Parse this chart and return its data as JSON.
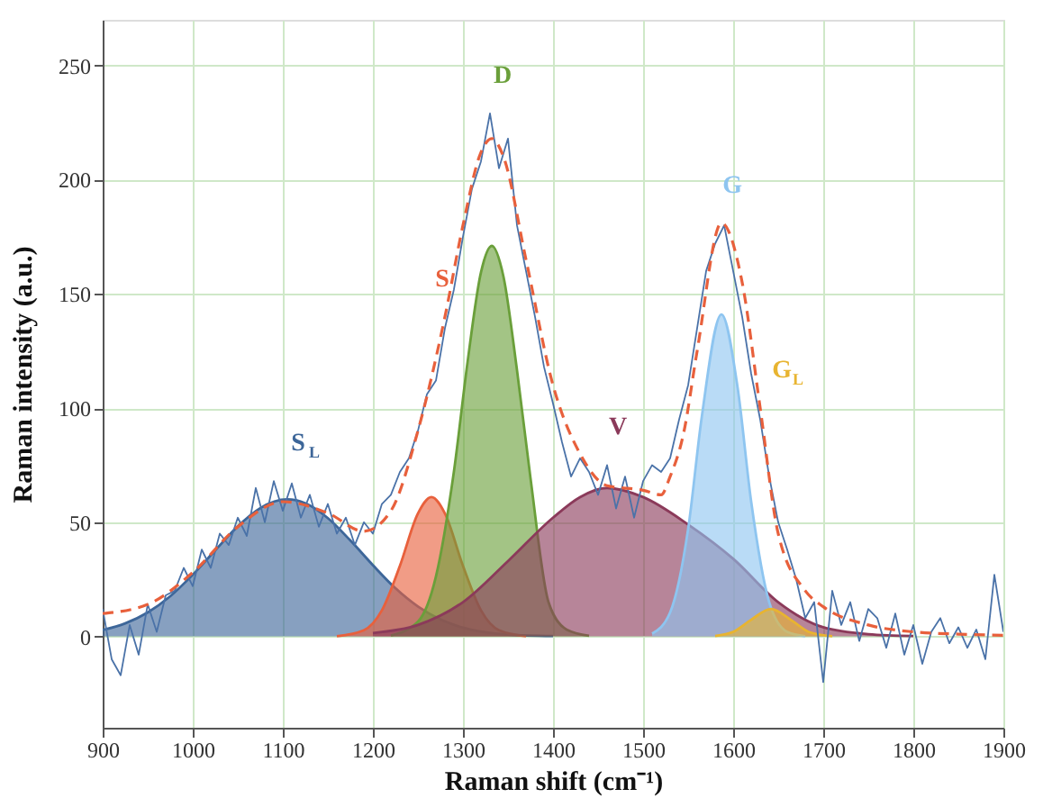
{
  "chart_data": {
    "type": "area",
    "xlabel": "Raman shift (cm⁻¹)",
    "ylabel": "Raman intensity (a.u.)",
    "xlim": [
      900,
      1900
    ],
    "xticks": [
      900,
      1000,
      1100,
      1200,
      1300,
      1400,
      1500,
      1600,
      1700,
      1800,
      1900
    ],
    "ylim": [
      -40,
      270
    ],
    "yticks": [
      0,
      50,
      100,
      150,
      200,
      250
    ],
    "grid": true,
    "marker": "none",
    "series": [
      {
        "name": "S$_{L}$",
        "color": "#3d6699",
        "x": [
          900,
          925,
          950,
          975,
          1000,
          1025,
          1050,
          1075,
          1105,
          1125,
          1150,
          1175,
          1200,
          1225,
          1250,
          1275,
          1300,
          1350,
          1400
        ],
        "values": [
          2.8,
          5.7,
          10.5,
          17.6,
          27,
          37.7,
          48.2,
          56.2,
          60,
          58.3,
          51.8,
          42,
          31.2,
          21.1,
          13.1,
          7.4,
          3.8,
          0.8,
          0.2
        ]
      },
      {
        "name": "S",
        "color": "#e8603c",
        "x": [
          1160,
          1190,
          1210,
          1230,
          1250,
          1265,
          1280,
          1300,
          1320,
          1340,
          1370
        ],
        "values": [
          0.1,
          2.7,
          11.4,
          30.9,
          53.8,
          61,
          53.8,
          30.9,
          11.4,
          2.7,
          0.1
        ]
      },
      {
        "name": "D",
        "color": "#6a9f3a",
        "x": [
          1220,
          1250,
          1270,
          1290,
          1305,
          1320,
          1332,
          1345,
          1360,
          1375,
          1395,
          1415,
          1440
        ],
        "values": [
          0.4,
          6.4,
          26.2,
          72.3,
          119.8,
          159.4,
          171,
          157.5,
          116.6,
          69.3,
          15,
          3,
          0.3
        ]
      },
      {
        "name": "V",
        "color": "#8b3a5a",
        "x": [
          1200,
          1250,
          1300,
          1350,
          1400,
          1430,
          1460,
          1500,
          1550,
          1600,
          1650,
          1700,
          1750,
          1800
        ],
        "values": [
          1.5,
          5,
          15,
          33,
          52,
          61,
          65,
          61,
          49,
          34,
          15,
          4,
          1,
          0.2
        ]
      },
      {
        "name": "G",
        "color": "#8ec5f0",
        "x": [
          1510,
          1530,
          1550,
          1565,
          1587,
          1605,
          1620,
          1640,
          1660,
          1680
        ],
        "values": [
          1.2,
          10.5,
          47,
          95.7,
          141,
          108.8,
          59,
          15,
          2,
          0.1
        ]
      },
      {
        "name": "G$_{L}$",
        "color": "#e8b430",
        "x": [
          1580,
          1600,
          1620,
          1642,
          1665,
          1685,
          1710
        ],
        "values": [
          0.2,
          2,
          7.3,
          12,
          7,
          1.8,
          0.1
        ]
      },
      {
        "type": "line",
        "line_style": "solid",
        "color": "#4a72a8",
        "x": [
          900,
          910,
          920,
          930,
          940,
          950,
          960,
          970,
          980,
          990,
          1000,
          1010,
          1020,
          1030,
          1040,
          1050,
          1060,
          1070,
          1080,
          1090,
          1100,
          1110,
          1120,
          1130,
          1140,
          1150,
          1160,
          1170,
          1180,
          1190,
          1200,
          1210,
          1220,
          1230,
          1240,
          1250,
          1260,
          1270,
          1280,
          1290,
          1300,
          1310,
          1320,
          1330,
          1340,
          1350,
          1360,
          1370,
          1380,
          1390,
          1400,
          1410,
          1420,
          1430,
          1440,
          1450,
          1460,
          1470,
          1480,
          1490,
          1500,
          1510,
          1520,
          1530,
          1540,
          1550,
          1560,
          1570,
          1580,
          1590,
          1600,
          1610,
          1620,
          1630,
          1640,
          1650,
          1660,
          1670,
          1680,
          1690,
          1700,
          1710,
          1720,
          1730,
          1740,
          1750,
          1760,
          1770,
          1780,
          1790,
          1800,
          1810,
          1820,
          1830,
          1840,
          1850,
          1860,
          1870,
          1880,
          1890,
          1900
        ],
        "values": [
          12,
          -10,
          -17,
          5,
          -8,
          14,
          2,
          18,
          20,
          30,
          22,
          38,
          30,
          45,
          40,
          52,
          44,
          65,
          50,
          68,
          55,
          67,
          52,
          62,
          48,
          58,
          45,
          52,
          40,
          50,
          45,
          58,
          62,
          72,
          78,
          90,
          106,
          112,
          135,
          152,
          175,
          196,
          208,
          229,
          205,
          218,
          180,
          160,
          140,
          118,
          102,
          85,
          70,
          78,
          72,
          62,
          75,
          56,
          70,
          52,
          68,
          75,
          72,
          78,
          95,
          110,
          135,
          160,
          172,
          180,
          160,
          140,
          115,
          95,
          70,
          50,
          38,
          25,
          8,
          15,
          -20,
          20,
          5,
          15,
          -2,
          12,
          8,
          -5,
          10,
          -8,
          5,
          -12,
          2,
          8,
          -3,
          4,
          -5,
          3,
          -10,
          27,
          2
        ]
      },
      {
        "type": "line",
        "line_style": "dashed",
        "color": "#e8603c",
        "x": [
          900,
          950,
          1000,
          1050,
          1100,
          1150,
          1190,
          1220,
          1250,
          1280,
          1300,
          1320,
          1332,
          1345,
          1370,
          1400,
          1430,
          1460,
          1500,
          1520,
          1530,
          1545,
          1560,
          1587,
          1610,
          1630,
          1650,
          1680,
          1700,
          1750,
          1800,
          1850,
          1900
        ],
        "values": [
          10,
          14,
          28,
          48,
          59,
          54,
          46,
          55,
          90,
          140,
          180,
          212,
          218,
          210,
          165,
          110,
          80,
          66,
          64,
          62,
          70,
          89,
          125,
          181,
          155,
          100,
          45,
          20,
          13,
          5,
          2,
          1,
          0.5
        ]
      }
    ]
  }
}
